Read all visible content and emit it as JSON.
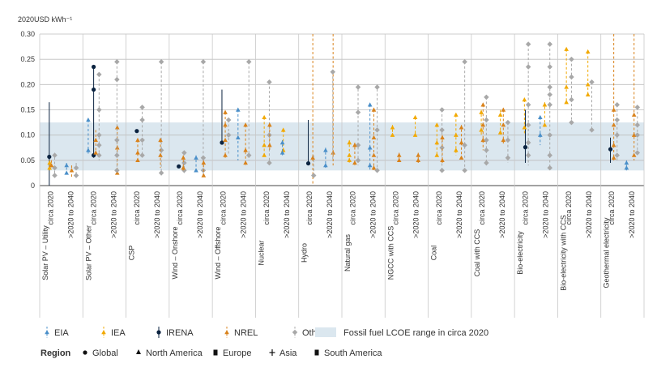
{
  "chart_data": {
    "type": "scatter",
    "ylabel": "2020USD kWh⁻¹",
    "ylim": [
      0,
      0.3
    ],
    "yticks": [
      "0",
      "0.05",
      "0.10",
      "0.15",
      "0.20",
      "0.25",
      "0.30"
    ],
    "grid": "horizontal",
    "legend_position": "bottom",
    "band": {
      "label": "Fossil fuel LCOE range in circa 2020",
      "low": 0.03,
      "high": 0.125,
      "color": "#dbe7ef"
    },
    "technologies": [
      "Solar PV – Utility",
      "Solar PV – Other",
      "CSP",
      "Wind – Onshore",
      "Wind – Offshore",
      "Nuclear",
      "Hydro",
      "Natural gas",
      "NGCC with CCS",
      "Coal",
      "Coal with CCS",
      "Bio-electricity",
      "Bio-electricity with CCS",
      "Geothermal electricity"
    ],
    "periods": [
      "circa 2020",
      ">2020 to 2040"
    ],
    "sources": [
      {
        "name": "EIA",
        "color": "#4a8fc9"
      },
      {
        "name": "IEA",
        "color": "#f2a900"
      },
      {
        "name": "IRENA",
        "color": "#0b2340"
      },
      {
        "name": "NREL",
        "color": "#d9821b"
      },
      {
        "name": "Other",
        "color": "#a8a8a8"
      }
    ],
    "region_label": "Region",
    "regions": [
      "Global",
      "North America",
      "Europe",
      "Asia",
      "South America"
    ],
    "series": [
      {
        "tech": 0,
        "period": 0,
        "source": "IRENA",
        "min": 0.0,
        "max": 0.165,
        "values": [
          0.057
        ]
      },
      {
        "tech": 0,
        "period": 0,
        "source": "Other",
        "min": 0.02,
        "max": 0.065,
        "values": [
          0.06,
          0.035,
          0.02
        ]
      },
      {
        "tech": 0,
        "period": 0,
        "source": "IEA",
        "min": 0.03,
        "max": 0.05,
        "values": [
          0.045,
          0.035
        ]
      },
      {
        "tech": 0,
        "period": 0,
        "source": "NREL",
        "min": 0.035,
        "max": 0.05,
        "values": [
          0.04
        ]
      },
      {
        "tech": 0,
        "period": 1,
        "source": "EIA",
        "min": 0.02,
        "max": 0.045,
        "values": [
          0.04,
          0.025
        ]
      },
      {
        "tech": 0,
        "period": 1,
        "source": "Other",
        "min": 0.015,
        "max": 0.045,
        "values": [
          0.035,
          0.02
        ]
      },
      {
        "tech": 0,
        "period": 1,
        "source": "NREL",
        "min": 0.015,
        "max": 0.04,
        "values": [
          0.03
        ]
      },
      {
        "tech": 1,
        "period": 0,
        "source": "IRENA",
        "min": 0.055,
        "max": 0.235,
        "values": [
          0.235,
          0.19,
          0.06
        ]
      },
      {
        "tech": 1,
        "period": 0,
        "source": "Other",
        "min": 0.05,
        "max": 0.22,
        "values": [
          0.22,
          0.15,
          0.1,
          0.08,
          0.06
        ]
      },
      {
        "tech": 1,
        "period": 0,
        "source": "EIA",
        "min": 0.06,
        "max": 0.13,
        "values": [
          0.13,
          0.07
        ]
      },
      {
        "tech": 1,
        "period": 0,
        "source": "NREL",
        "min": 0.06,
        "max": 0.11,
        "values": [
          0.09,
          0.065
        ]
      },
      {
        "tech": 1,
        "period": 1,
        "source": "NREL",
        "min": 0.02,
        "max": 0.115,
        "values": [
          0.115,
          0.075,
          0.025
        ]
      },
      {
        "tech": 1,
        "period": 1,
        "source": "Other",
        "min": 0.03,
        "max": 0.245,
        "values": [
          0.245,
          0.21,
          0.09,
          0.06,
          0.03
        ]
      },
      {
        "tech": 2,
        "period": 0,
        "source": "IRENA",
        "min": 0.105,
        "max": 0.11,
        "values": [
          0.108
        ]
      },
      {
        "tech": 2,
        "period": 0,
        "source": "Other",
        "min": 0.06,
        "max": 0.155,
        "values": [
          0.155,
          0.13,
          0.09,
          0.06
        ]
      },
      {
        "tech": 2,
        "period": 0,
        "source": "NREL",
        "min": 0.05,
        "max": 0.09,
        "values": [
          0.09,
          0.065,
          0.05
        ]
      },
      {
        "tech": 2,
        "period": 1,
        "source": "Other",
        "min": 0.02,
        "max": 0.245,
        "values": [
          0.245,
          0.07,
          0.025
        ]
      },
      {
        "tech": 2,
        "period": 1,
        "source": "NREL",
        "min": 0.035,
        "max": 0.09,
        "values": [
          0.09,
          0.06
        ]
      },
      {
        "tech": 3,
        "period": 0,
        "source": "IRENA",
        "min": 0.035,
        "max": 0.04,
        "values": [
          0.038
        ]
      },
      {
        "tech": 3,
        "period": 0,
        "source": "Other",
        "min": 0.025,
        "max": 0.065,
        "values": [
          0.065,
          0.045,
          0.03
        ]
      },
      {
        "tech": 3,
        "period": 0,
        "source": "NREL",
        "min": 0.03,
        "max": 0.06,
        "values": [
          0.055,
          0.035
        ]
      },
      {
        "tech": 3,
        "period": 1,
        "source": "Other",
        "min": 0.02,
        "max": 0.245,
        "values": [
          0.245,
          0.055,
          0.03
        ]
      },
      {
        "tech": 3,
        "period": 1,
        "source": "EIA",
        "min": 0.025,
        "max": 0.06,
        "values": [
          0.055,
          0.03
        ]
      },
      {
        "tech": 3,
        "period": 1,
        "source": "NREL",
        "min": 0.015,
        "max": 0.05,
        "values": [
          0.045,
          0.02
        ]
      },
      {
        "tech": 4,
        "period": 0,
        "source": "IRENA",
        "min": 0.085,
        "max": 0.19,
        "values": [
          0.085
        ]
      },
      {
        "tech": 4,
        "period": 0,
        "source": "NREL",
        "min": 0.055,
        "max": 0.145,
        "values": [
          0.145,
          0.12,
          0.09,
          0.06
        ]
      },
      {
        "tech": 4,
        "period": 0,
        "source": "Other",
        "min": 0.06,
        "max": 0.13,
        "values": [
          0.13,
          0.1
        ]
      },
      {
        "tech": 4,
        "period": 1,
        "source": "EIA",
        "min": 0.05,
        "max": 0.15,
        "values": [
          0.15,
          0.095
        ]
      },
      {
        "tech": 4,
        "period": 1,
        "source": "NREL",
        "min": 0.04,
        "max": 0.12,
        "values": [
          0.12,
          0.07,
          0.045
        ]
      },
      {
        "tech": 4,
        "period": 1,
        "source": "Other",
        "min": 0.05,
        "max": 0.245,
        "values": [
          0.245,
          0.06
        ]
      },
      {
        "tech": 5,
        "period": 0,
        "source": "Other",
        "min": 0.04,
        "max": 0.205,
        "values": [
          0.205,
          0.1,
          0.045
        ]
      },
      {
        "tech": 5,
        "period": 0,
        "source": "IEA",
        "min": 0.06,
        "max": 0.135,
        "values": [
          0.135,
          0.08,
          0.06
        ]
      },
      {
        "tech": 5,
        "period": 0,
        "source": "NREL",
        "min": 0.07,
        "max": 0.12,
        "values": [
          0.12,
          0.08
        ]
      },
      {
        "tech": 5,
        "period": 1,
        "source": "IEA",
        "min": 0.065,
        "max": 0.11,
        "values": [
          0.11,
          0.07
        ]
      },
      {
        "tech": 5,
        "period": 1,
        "source": "EIA",
        "min": 0.06,
        "max": 0.09,
        "values": [
          0.085,
          0.065
        ]
      },
      {
        "tech": 6,
        "period": 0,
        "source": "NREL",
        "min": 0.0,
        "max": 0.3,
        "values": [
          0.055
        ]
      },
      {
        "tech": 6,
        "period": 0,
        "source": "IRENA",
        "min": 0.04,
        "max": 0.13,
        "values": [
          0.044
        ]
      },
      {
        "tech": 6,
        "period": 0,
        "source": "Other",
        "min": 0.02,
        "max": 0.06,
        "values": [
          0.02
        ]
      },
      {
        "tech": 6,
        "period": 1,
        "source": "NREL",
        "min": 0.04,
        "max": 0.3,
        "values": [
          0.065
        ]
      },
      {
        "tech": 6,
        "period": 1,
        "source": "Other",
        "min": 0.05,
        "max": 0.225,
        "values": [
          0.225
        ]
      },
      {
        "tech": 6,
        "period": 1,
        "source": "EIA",
        "min": 0.035,
        "max": 0.075,
        "values": [
          0.07,
          0.04
        ]
      },
      {
        "tech": 7,
        "period": 0,
        "source": "Other",
        "min": 0.04,
        "max": 0.2,
        "values": [
          0.195,
          0.145,
          0.08,
          0.05
        ]
      },
      {
        "tech": 7,
        "period": 0,
        "source": "IEA",
        "min": 0.045,
        "max": 0.09,
        "values": [
          0.085,
          0.06,
          0.05
        ]
      },
      {
        "tech": 7,
        "period": 0,
        "source": "NREL",
        "min": 0.04,
        "max": 0.085,
        "values": [
          0.08,
          0.045
        ]
      },
      {
        "tech": 7,
        "period": 1,
        "source": "EIA",
        "min": 0.03,
        "max": 0.16,
        "values": [
          0.16,
          0.075,
          0.04
        ]
      },
      {
        "tech": 7,
        "period": 1,
        "source": "NREL",
        "min": 0.03,
        "max": 0.15,
        "values": [
          0.15,
          0.095,
          0.06,
          0.035
        ]
      },
      {
        "tech": 7,
        "period": 1,
        "source": "Other",
        "min": 0.025,
        "max": 0.2,
        "values": [
          0.195,
          0.11,
          0.03
        ]
      },
      {
        "tech": 8,
        "period": 0,
        "source": "NREL",
        "min": 0.05,
        "max": 0.065,
        "values": [
          0.06,
          0.05
        ]
      },
      {
        "tech": 8,
        "period": 0,
        "source": "IEA",
        "min": 0.1,
        "max": 0.12,
        "values": [
          0.115,
          0.1
        ]
      },
      {
        "tech": 8,
        "period": 1,
        "source": "NREL",
        "min": 0.045,
        "max": 0.065,
        "values": [
          0.06,
          0.05
        ]
      },
      {
        "tech": 8,
        "period": 1,
        "source": "IEA",
        "min": 0.1,
        "max": 0.135,
        "values": [
          0.135,
          0.1
        ]
      },
      {
        "tech": 9,
        "period": 0,
        "source": "Other",
        "min": 0.03,
        "max": 0.15,
        "values": [
          0.15,
          0.11,
          0.075,
          0.03
        ]
      },
      {
        "tech": 9,
        "period": 0,
        "source": "IEA",
        "min": 0.06,
        "max": 0.12,
        "values": [
          0.12,
          0.085,
          0.06
        ]
      },
      {
        "tech": 9,
        "period": 0,
        "source": "NREL",
        "min": 0.045,
        "max": 0.1,
        "values": [
          0.095,
          0.05
        ]
      },
      {
        "tech": 9,
        "period": 1,
        "source": "IEA",
        "min": 0.06,
        "max": 0.14,
        "values": [
          0.14,
          0.1,
          0.07
        ]
      },
      {
        "tech": 9,
        "period": 1,
        "source": "NREL",
        "min": 0.05,
        "max": 0.12,
        "values": [
          0.115,
          0.085,
          0.055
        ]
      },
      {
        "tech": 9,
        "period": 1,
        "source": "Other",
        "min": 0.025,
        "max": 0.245,
        "values": [
          0.245,
          0.08,
          0.03
        ]
      },
      {
        "tech": 10,
        "period": 0,
        "source": "NREL",
        "min": 0.07,
        "max": 0.16,
        "values": [
          0.16,
          0.12,
          0.09
        ]
      },
      {
        "tech": 10,
        "period": 0,
        "source": "Other",
        "min": 0.04,
        "max": 0.175,
        "values": [
          0.175,
          0.13,
          0.09,
          0.07,
          0.045
        ]
      },
      {
        "tech": 10,
        "period": 0,
        "source": "IEA",
        "min": 0.1,
        "max": 0.15,
        "values": [
          0.145,
          0.11
        ]
      },
      {
        "tech": 10,
        "period": 1,
        "source": "NREL",
        "min": 0.08,
        "max": 0.15,
        "values": [
          0.15,
          0.12,
          0.09
        ]
      },
      {
        "tech": 10,
        "period": 1,
        "source": "IEA",
        "min": 0.1,
        "max": 0.15,
        "values": [
          0.14,
          0.105
        ]
      },
      {
        "tech": 10,
        "period": 1,
        "source": "Other",
        "min": 0.045,
        "max": 0.125,
        "values": [
          0.125,
          0.09,
          0.055
        ]
      },
      {
        "tech": 11,
        "period": 0,
        "source": "Other",
        "min": 0.04,
        "max": 0.28,
        "values": [
          0.28,
          0.235,
          0.16,
          0.12,
          0.085,
          0.06
        ]
      },
      {
        "tech": 11,
        "period": 0,
        "source": "IRENA",
        "min": 0.045,
        "max": 0.15,
        "values": [
          0.076
        ]
      },
      {
        "tech": 11,
        "period": 0,
        "source": "IEA",
        "min": 0.1,
        "max": 0.17,
        "values": [
          0.17,
          0.115
        ]
      },
      {
        "tech": 11,
        "period": 1,
        "source": "EIA",
        "min": 0.08,
        "max": 0.135,
        "values": [
          0.135,
          0.1
        ]
      },
      {
        "tech": 11,
        "period": 1,
        "source": "Other",
        "min": 0.035,
        "max": 0.28,
        "values": [
          0.28,
          0.235,
          0.195,
          0.18,
          0.16,
          0.1,
          0.06,
          0.035
        ]
      },
      {
        "tech": 11,
        "period": 1,
        "source": "IEA",
        "min": 0.115,
        "max": 0.165,
        "values": [
          0.16,
          0.12
        ]
      },
      {
        "tech": 12,
        "period": 0,
        "source": "Other",
        "min": 0.12,
        "max": 0.25,
        "values": [
          0.25,
          0.215,
          0.17,
          0.125
        ]
      },
      {
        "tech": 12,
        "period": 0,
        "source": "IEA",
        "min": 0.165,
        "max": 0.27,
        "values": [
          0.27,
          0.195,
          0.165
        ]
      },
      {
        "tech": 12,
        "period": 1,
        "source": "IEA",
        "min": 0.18,
        "max": 0.265,
        "values": [
          0.265,
          0.2,
          0.18
        ]
      },
      {
        "tech": 12,
        "period": 1,
        "source": "Other",
        "min": 0.11,
        "max": 0.205,
        "values": [
          0.205,
          0.11
        ]
      },
      {
        "tech": 13,
        "period": 0,
        "source": "NREL",
        "min": 0.05,
        "max": 0.3,
        "values": [
          0.15,
          0.12,
          0.08,
          0.055
        ]
      },
      {
        "tech": 13,
        "period": 0,
        "source": "Other",
        "min": 0.05,
        "max": 0.16,
        "values": [
          0.16,
          0.13,
          0.1,
          0.06
        ]
      },
      {
        "tech": 13,
        "period": 0,
        "source": "IRENA",
        "min": 0.045,
        "max": 0.095,
        "values": [
          0.072
        ]
      },
      {
        "tech": 13,
        "period": 1,
        "source": "NREL",
        "min": 0.05,
        "max": 0.3,
        "values": [
          0.14,
          0.1,
          0.06
        ]
      },
      {
        "tech": 13,
        "period": 1,
        "source": "Other",
        "min": 0.06,
        "max": 0.155,
        "values": [
          0.155,
          0.12,
          0.1,
          0.065
        ]
      },
      {
        "tech": 13,
        "period": 1,
        "source": "EIA",
        "min": 0.03,
        "max": 0.05,
        "values": [
          0.045,
          0.035
        ]
      }
    ]
  }
}
